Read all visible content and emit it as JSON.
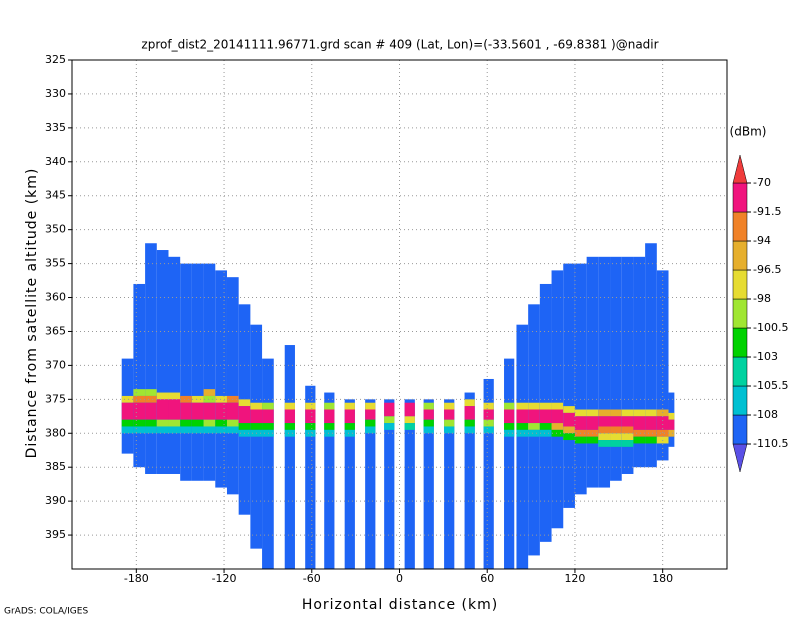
{
  "chart_data": {
    "type": "profile",
    "title": "zprof_dist2_20141111.96771.grd  scan # 409  (Lat, Lon)=(-33.5601 , -69.8381 )@nadir",
    "x_label": "Horizontal distance (km)",
    "y_label": "Distance from satellite altitude (km)",
    "colorbar_label": "(dBm)",
    "credit": "GrADS: COLA/IGES",
    "xlim": [
      -224,
      224
    ],
    "ylim": [
      400,
      325
    ],
    "xticks": [
      -180,
      -120,
      -60,
      0,
      60,
      120,
      180
    ],
    "yticks": [
      325,
      330,
      335,
      340,
      345,
      350,
      355,
      360,
      365,
      370,
      375,
      380,
      385,
      390,
      395
    ],
    "grid": true,
    "levels": [
      -110.5,
      -108,
      -105.5,
      -103,
      -100.5,
      -98,
      -96.5,
      -94,
      -91.5,
      -70
    ],
    "colors": [
      "#5a50e6",
      "#1e64f5",
      "#00c0d2",
      "#00d2a0",
      "#00d200",
      "#a0e632",
      "#e6dc32",
      "#e6af2d",
      "#f08228",
      "#f0147d",
      "#f03c3c"
    ],
    "base_value": -109,
    "columns": [
      {
        "x": [
          -190,
          -182
        ],
        "y": [
          369,
          383
        ],
        "band": [
          [
            374.5,
            375.5,
            -97
          ],
          [
            375.5,
            378,
            -85
          ],
          [
            378,
            379,
            -101
          ],
          [
            379,
            380,
            -107
          ]
        ]
      },
      {
        "x": [
          -182,
          -174
        ],
        "y": [
          358,
          385
        ],
        "band": [
          [
            373.5,
            374.5,
            -100
          ],
          [
            374.5,
            375.5,
            -93
          ],
          [
            375.5,
            378,
            -85
          ],
          [
            378,
            379,
            -101
          ],
          [
            379,
            380,
            -107
          ]
        ]
      },
      {
        "x": [
          -174,
          -166
        ],
        "y": [
          352,
          386
        ],
        "band": [
          [
            373.5,
            374.5,
            -100
          ],
          [
            374.5,
            375.5,
            -93
          ],
          [
            375.5,
            378,
            -85
          ],
          [
            378,
            379,
            -101
          ],
          [
            379,
            380,
            -107
          ]
        ]
      },
      {
        "x": [
          -166,
          -158
        ],
        "y": [
          353,
          386
        ],
        "band": [
          [
            374,
            375,
            -97
          ],
          [
            375,
            378,
            -85
          ],
          [
            378,
            379,
            -100
          ],
          [
            379,
            380,
            -106
          ]
        ]
      },
      {
        "x": [
          -158,
          -150
        ],
        "y": [
          354,
          386
        ],
        "band": [
          [
            374,
            375,
            -97
          ],
          [
            375,
            378,
            -85
          ],
          [
            378,
            379,
            -100
          ],
          [
            379,
            380,
            -106
          ]
        ]
      },
      {
        "x": [
          -150,
          -142
        ],
        "y": [
          355,
          387
        ],
        "band": [
          [
            374.5,
            375.5,
            -94
          ],
          [
            375.5,
            378,
            -85
          ],
          [
            378,
            379,
            -101
          ],
          [
            379,
            380,
            -107
          ]
        ]
      },
      {
        "x": [
          -142,
          -134
        ],
        "y": [
          355,
          387
        ],
        "band": [
          [
            374.5,
            375.5,
            -97
          ],
          [
            375.5,
            378,
            -85
          ],
          [
            378,
            379,
            -101
          ],
          [
            379,
            380,
            -107
          ]
        ]
      },
      {
        "x": [
          -134,
          -126
        ],
        "y": [
          355,
          387
        ],
        "band": [
          [
            373.5,
            374.5,
            -95
          ],
          [
            374.5,
            375.5,
            -99
          ],
          [
            375.5,
            378,
            -85
          ],
          [
            378,
            379,
            -100
          ],
          [
            379,
            380,
            -106
          ]
        ]
      },
      {
        "x": [
          -126,
          -118
        ],
        "y": [
          356,
          388
        ],
        "band": [
          [
            374.5,
            375.5,
            -97
          ],
          [
            375.5,
            378,
            -85
          ],
          [
            378,
            379,
            -101
          ],
          [
            379,
            380,
            -107
          ]
        ]
      },
      {
        "x": [
          -118,
          -110
        ],
        "y": [
          357,
          389
        ],
        "band": [
          [
            374.5,
            375.5,
            -94
          ],
          [
            375.5,
            378,
            -85
          ],
          [
            378,
            379,
            -100
          ],
          [
            379,
            380,
            -106
          ]
        ]
      },
      {
        "x": [
          -110,
          -102
        ],
        "y": [
          361,
          392
        ],
        "band": [
          [
            375,
            376,
            -97
          ],
          [
            376,
            378.5,
            -85
          ],
          [
            378.5,
            379.5,
            -101
          ],
          [
            379.5,
            380.5,
            -106
          ]
        ]
      },
      {
        "x": [
          -102,
          -94
        ],
        "y": [
          364,
          397
        ],
        "band": [
          [
            375.5,
            376.5,
            -97
          ],
          [
            376.5,
            378.5,
            -85
          ],
          [
            378.5,
            379.5,
            -101
          ],
          [
            379.5,
            380.5,
            -106
          ]
        ]
      },
      {
        "x": [
          -94,
          -86
        ],
        "y": [
          369,
          400
        ],
        "band": [
          [
            375.5,
            376.5,
            -99
          ],
          [
            376.5,
            378.5,
            -85
          ],
          [
            378.5,
            379.5,
            -102
          ],
          [
            379.5,
            380.5,
            -107
          ]
        ]
      },
      {
        "x": [
          -78.5,
          -71.5
        ],
        "y": [
          367,
          400
        ],
        "band": [
          [
            375.5,
            376.5,
            -97
          ],
          [
            376.5,
            378.5,
            -85
          ],
          [
            378.5,
            379.5,
            -101
          ],
          [
            379.5,
            380.5,
            -106
          ]
        ]
      },
      {
        "x": [
          -64.5,
          -57.5
        ],
        "y": [
          373,
          400
        ],
        "band": [
          [
            375.5,
            376.5,
            -98
          ],
          [
            376.5,
            378.5,
            -85
          ],
          [
            378.5,
            379.5,
            -101
          ],
          [
            379.5,
            380.5,
            -106
          ]
        ]
      },
      {
        "x": [
          -51.5,
          -44.5
        ],
        "y": [
          374,
          400
        ],
        "band": [
          [
            375.5,
            376.5,
            -99
          ],
          [
            376.5,
            378.5,
            -85
          ],
          [
            378.5,
            379.5,
            -102
          ],
          [
            379.5,
            380.5,
            -107
          ]
        ]
      },
      {
        "x": [
          -37.5,
          -30.5
        ],
        "y": [
          375,
          400
        ],
        "band": [
          [
            375.5,
            376.5,
            -97
          ],
          [
            376.5,
            378.5,
            -85
          ],
          [
            378.5,
            379.5,
            -101
          ],
          [
            379.5,
            380.5,
            -106
          ]
        ]
      },
      {
        "x": [
          -23.5,
          -16.5
        ],
        "y": [
          375,
          400
        ],
        "band": [
          [
            375.5,
            376.5,
            -98
          ],
          [
            376.5,
            378,
            -85
          ],
          [
            378,
            379,
            -101
          ],
          [
            379,
            380,
            -106
          ]
        ]
      },
      {
        "x": [
          -10.5,
          -3.5
        ],
        "y": [
          375,
          400
        ],
        "band": [
          [
            375.5,
            377.5,
            -85
          ],
          [
            377.5,
            378.5,
            -100
          ],
          [
            378.5,
            379.5,
            -106
          ]
        ]
      },
      {
        "x": [
          3.5,
          10.5
        ],
        "y": [
          375,
          400
        ],
        "band": [
          [
            375.5,
            377.5,
            -85
          ],
          [
            377.5,
            378.5,
            -98
          ],
          [
            378.5,
            379.5,
            -105
          ]
        ]
      },
      {
        "x": [
          16.5,
          23.5
        ],
        "y": [
          375,
          400
        ],
        "band": [
          [
            375.5,
            376.5,
            -99
          ],
          [
            376.5,
            378,
            -85
          ],
          [
            378,
            379,
            -101
          ],
          [
            379,
            380,
            -106
          ]
        ]
      },
      {
        "x": [
          30.5,
          37.5
        ],
        "y": [
          375,
          400
        ],
        "band": [
          [
            375.5,
            376.5,
            -97
          ],
          [
            376.5,
            378,
            -85
          ],
          [
            378,
            379,
            -100
          ],
          [
            379,
            380,
            -106
          ]
        ]
      },
      {
        "x": [
          44.5,
          51.5
        ],
        "y": [
          374,
          400
        ],
        "band": [
          [
            375,
            376,
            -98
          ],
          [
            376,
            378,
            -85
          ],
          [
            378,
            379,
            -101
          ],
          [
            379,
            380,
            -107
          ]
        ]
      },
      {
        "x": [
          57.5,
          64.5
        ],
        "y": [
          372,
          400
        ],
        "band": [
          [
            375.5,
            376.5,
            -97
          ],
          [
            376.5,
            378,
            -85
          ],
          [
            378,
            379,
            -100
          ],
          [
            379,
            380,
            -106
          ]
        ]
      },
      {
        "x": [
          71.5,
          78.5
        ],
        "y": [
          369,
          400
        ],
        "band": [
          [
            375.5,
            376.5,
            -99
          ],
          [
            376.5,
            378.5,
            -85
          ],
          [
            378.5,
            379.5,
            -101
          ],
          [
            379.5,
            380.5,
            -106
          ]
        ]
      },
      {
        "x": [
          80,
          88
        ],
        "y": [
          364,
          400
        ],
        "band": [
          [
            375.5,
            376.5,
            -97
          ],
          [
            376.5,
            378.5,
            -85
          ],
          [
            378.5,
            379.5,
            -101
          ],
          [
            379.5,
            380.5,
            -106
          ]
        ]
      },
      {
        "x": [
          88,
          96
        ],
        "y": [
          361,
          398
        ],
        "band": [
          [
            375.5,
            376.5,
            -97
          ],
          [
            376.5,
            378.5,
            -85
          ],
          [
            378.5,
            379.5,
            -100
          ],
          [
            379.5,
            380.5,
            -106
          ]
        ]
      },
      {
        "x": [
          96,
          104
        ],
        "y": [
          358,
          396
        ],
        "band": [
          [
            375.5,
            376.5,
            -98
          ],
          [
            376.5,
            378.5,
            -85
          ],
          [
            378.5,
            379.5,
            -101
          ],
          [
            379.5,
            380.5,
            -106
          ]
        ]
      },
      {
        "x": [
          104,
          112
        ],
        "y": [
          356,
          394
        ],
        "band": [
          [
            375.5,
            376.5,
            -97
          ],
          [
            376.5,
            378.5,
            -85
          ],
          [
            378.5,
            379.5,
            -96
          ],
          [
            379.5,
            380.5,
            -103
          ]
        ]
      },
      {
        "x": [
          112,
          120
        ],
        "y": [
          355,
          391
        ],
        "band": [
          [
            376,
            377,
            -97
          ],
          [
            377,
            379,
            -85
          ],
          [
            379,
            380,
            -95
          ],
          [
            380,
            381,
            -103
          ]
        ]
      },
      {
        "x": [
          120,
          128
        ],
        "y": [
          355,
          389
        ],
        "band": [
          [
            376.5,
            377.5,
            -97
          ],
          [
            377.5,
            379.5,
            -85
          ],
          [
            379.5,
            380.5,
            -93
          ],
          [
            380.5,
            381.5,
            -102
          ]
        ]
      },
      {
        "x": [
          128,
          136
        ],
        "y": [
          354,
          388
        ],
        "band": [
          [
            376.5,
            377.5,
            -97
          ],
          [
            377.5,
            379.5,
            -85
          ],
          [
            379.5,
            380.5,
            -93
          ],
          [
            380.5,
            381.5,
            -102
          ]
        ]
      },
      {
        "x": [
          136,
          144
        ],
        "y": [
          354,
          388
        ],
        "band": [
          [
            376.5,
            377.5,
            -95
          ],
          [
            377.5,
            379,
            -85
          ],
          [
            379,
            380,
            -93
          ],
          [
            380,
            381,
            -97
          ],
          [
            381,
            382,
            -104
          ]
        ]
      },
      {
        "x": [
          144,
          152
        ],
        "y": [
          354,
          387
        ],
        "band": [
          [
            376.5,
            377.5,
            -95
          ],
          [
            377.5,
            379,
            -85
          ],
          [
            379,
            380,
            -93
          ],
          [
            380,
            381,
            -97
          ],
          [
            381,
            382,
            -104
          ]
        ]
      },
      {
        "x": [
          152,
          160
        ],
        "y": [
          354,
          386
        ],
        "band": [
          [
            376.5,
            377.5,
            -97
          ],
          [
            377.5,
            379,
            -85
          ],
          [
            379,
            380,
            -93
          ],
          [
            380,
            381,
            -97
          ],
          [
            381,
            382,
            -104
          ]
        ]
      },
      {
        "x": [
          160,
          168
        ],
        "y": [
          354,
          385
        ],
        "band": [
          [
            376.5,
            377.5,
            -97
          ],
          [
            377.5,
            379.5,
            -85
          ],
          [
            379.5,
            380.5,
            -93
          ],
          [
            380.5,
            381.5,
            -101
          ]
        ]
      },
      {
        "x": [
          168,
          176
        ],
        "y": [
          352,
          385
        ],
        "band": [
          [
            376.5,
            377.5,
            -97
          ],
          [
            377.5,
            379.5,
            -85
          ],
          [
            379.5,
            380.5,
            -93
          ],
          [
            380.5,
            381.5,
            -101
          ]
        ]
      },
      {
        "x": [
          176,
          184
        ],
        "y": [
          356,
          384
        ],
        "band": [
          [
            376.5,
            377.5,
            -95
          ],
          [
            377.5,
            379.5,
            -85
          ],
          [
            379.5,
            380.5,
            -93
          ],
          [
            380.5,
            381.5,
            -98
          ]
        ]
      },
      {
        "x": [
          184,
          188
        ],
        "y": [
          374,
          382
        ],
        "band": [
          [
            377,
            378,
            -97
          ],
          [
            378,
            379.5,
            -91
          ],
          [
            379.5,
            380.5,
            -96
          ]
        ]
      }
    ]
  }
}
